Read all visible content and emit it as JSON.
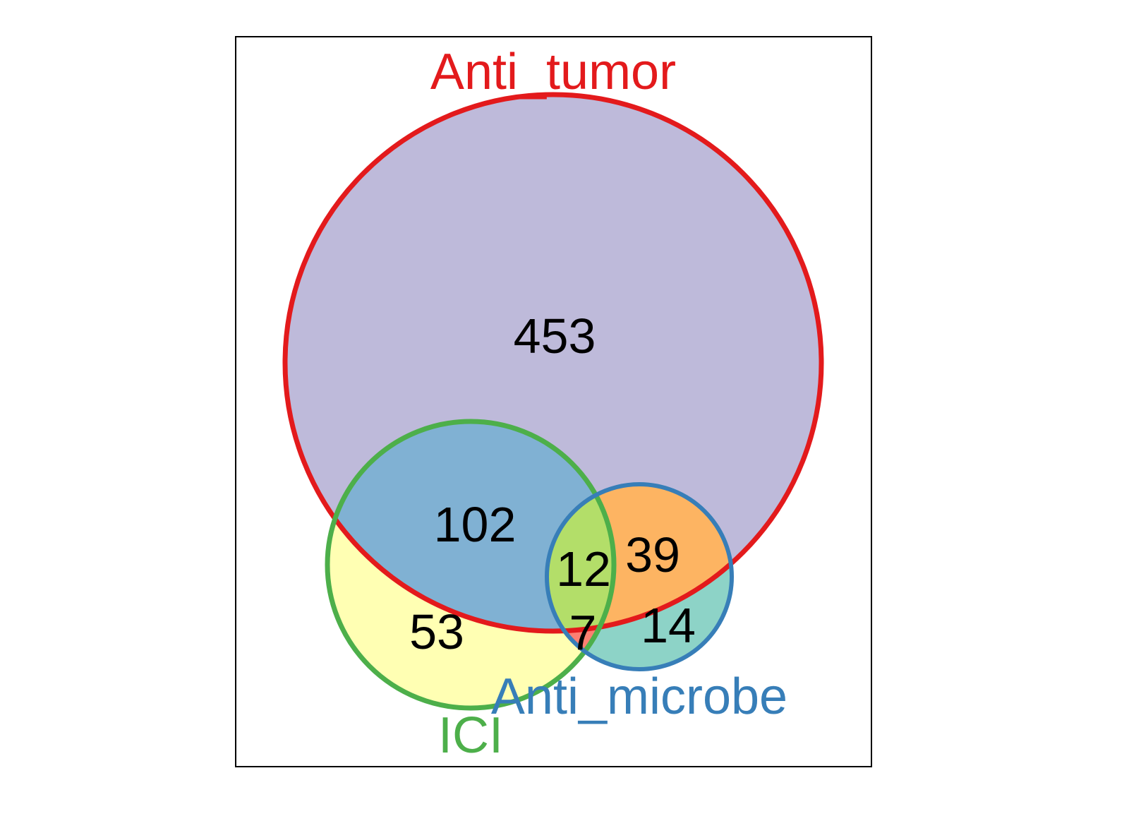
{
  "sets": {
    "anti_tumor": {
      "label": "Anti_tumor",
      "stroke": "#e31a1c"
    },
    "ici": {
      "label": "ICI",
      "stroke": "#4daf4a"
    },
    "anti_microbe": {
      "label": "Anti_microbe",
      "stroke": "#377eb8"
    }
  },
  "regions": {
    "anti_tumor_only": {
      "count": "453",
      "fill": "#bebada"
    },
    "tumor_ici": {
      "count": "102",
      "fill": "#80b1d3"
    },
    "ici_only": {
      "count": "53",
      "fill": "#ffffb3"
    },
    "all_three": {
      "count": "12",
      "fill": "#b3de69"
    },
    "tumor_microbe": {
      "count": "39",
      "fill": "#fdb462"
    },
    "microbe_only": {
      "count": "14",
      "fill": "#8dd3c7"
    },
    "ici_microbe": {
      "count": "7",
      "fill": "#fb8072"
    }
  }
}
